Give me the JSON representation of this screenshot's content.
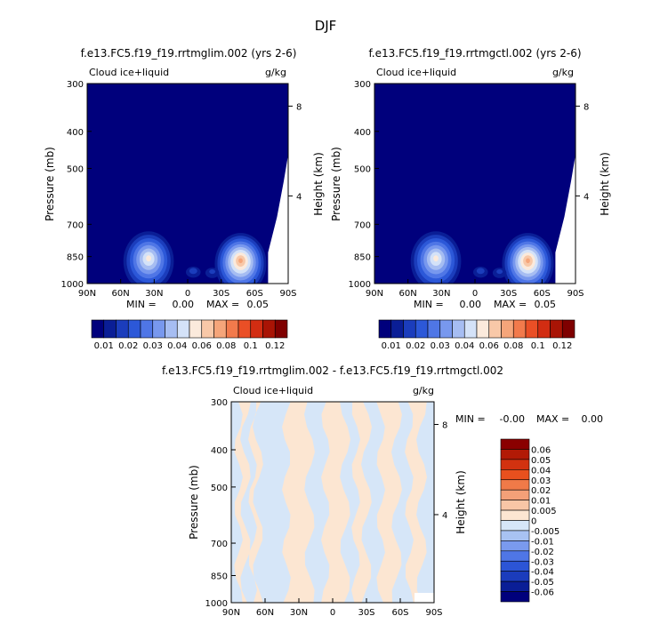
{
  "page_title": "DJF",
  "chart_data": [
    {
      "type": "heatmap",
      "title": "f.e13.FC5.f19_f19.rrtmglim.002 (yrs 2-6)",
      "variable_label": "Cloud ice+liquid",
      "units_label": "g/kg",
      "ylabel": "Pressure (mb)",
      "y2label": "Height (km)",
      "x_ticks": [
        "90N",
        "60N",
        "30N",
        "0",
        "30S",
        "60S",
        "90S"
      ],
      "y_ticks": [
        "300",
        "400",
        "500",
        "700",
        "850",
        "1000"
      ],
      "y_tick_values": [
        300,
        400,
        500,
        700,
        850,
        1000
      ],
      "y2_ticks": [
        "8",
        "4"
      ],
      "x_range": [
        90,
        -90
      ],
      "y_range": [
        300,
        1000
      ],
      "y_scale": "log",
      "min_label": "MIN =",
      "min_value": "0.00",
      "max_label": "MAX =",
      "max_value": "0.05",
      "colorbar_levels": [
        "0.01",
        "0.02",
        "0.03",
        "0.04",
        "0.06",
        "0.08",
        "0.1",
        "0.12"
      ],
      "colorbar_colors": [
        "#00007c",
        "#0a1e96",
        "#1b3dbc",
        "#2c58d8",
        "#4f76e6",
        "#7898ee",
        "#a6bdf2",
        "#d4e2f8",
        "#fbeadc",
        "#f8c8a8",
        "#f5a57a",
        "#f27a4c",
        "#ea4f26",
        "#d22d12",
        "#a91405",
        "#7f0000"
      ],
      "features": [
        {
          "lat": 35,
          "p": 858,
          "peak": 0.04
        },
        {
          "lat": -45,
          "p": 870,
          "peak": 0.05
        },
        {
          "lat": -5,
          "p": 920,
          "peak": 0.012
        },
        {
          "lat": -22,
          "p": 925,
          "peak": 0.01
        }
      ]
    },
    {
      "type": "heatmap",
      "title": "f.e13.FC5.f19_f19.rrtmgctl.002 (yrs 2-6)",
      "variable_label": "Cloud ice+liquid",
      "units_label": "g/kg",
      "ylabel": "Pressure (mb)",
      "y2label": "Height (km)",
      "x_ticks": [
        "90N",
        "60N",
        "30N",
        "0",
        "30S",
        "60S",
        "90S"
      ],
      "y_ticks": [
        "300",
        "400",
        "500",
        "700",
        "850",
        "1000"
      ],
      "y_tick_values": [
        300,
        400,
        500,
        700,
        850,
        1000
      ],
      "y2_ticks": [
        "8",
        "4"
      ],
      "x_range": [
        90,
        -90
      ],
      "y_range": [
        300,
        1000
      ],
      "y_scale": "log",
      "min_label": "MIN =",
      "min_value": "0.00",
      "max_label": "MAX =",
      "max_value": "0.05",
      "colorbar_levels": [
        "0.01",
        "0.02",
        "0.03",
        "0.04",
        "0.06",
        "0.08",
        "0.1",
        "0.12"
      ],
      "colorbar_colors": [
        "#00007c",
        "#0a1e96",
        "#1b3dbc",
        "#2c58d8",
        "#4f76e6",
        "#7898ee",
        "#a6bdf2",
        "#d4e2f8",
        "#fbeadc",
        "#f8c8a8",
        "#f5a57a",
        "#f27a4c",
        "#ea4f26",
        "#d22d12",
        "#a91405",
        "#7f0000"
      ],
      "features": [
        {
          "lat": 35,
          "p": 858,
          "peak": 0.04
        },
        {
          "lat": -45,
          "p": 870,
          "peak": 0.05
        },
        {
          "lat": -5,
          "p": 920,
          "peak": 0.012
        },
        {
          "lat": -22,
          "p": 925,
          "peak": 0.01
        }
      ]
    },
    {
      "type": "heatmap",
      "title": "f.e13.FC5.f19_f19.rrtmglim.002 - f.e13.FC5.f19_f19.rrtmgctl.002",
      "variable_label": "Cloud ice+liquid",
      "units_label": "g/kg",
      "ylabel": "Pressure (mb)",
      "y2label": "Height (km)",
      "x_ticks": [
        "90N",
        "60N",
        "30N",
        "0",
        "30S",
        "60S",
        "90S"
      ],
      "y_ticks": [
        "300",
        "400",
        "500",
        "700",
        "850",
        "1000"
      ],
      "y_tick_values": [
        300,
        400,
        500,
        700,
        850,
        1000
      ],
      "y2_ticks": [
        "8",
        "4"
      ],
      "x_range": [
        90,
        -90
      ],
      "y_range": [
        300,
        1000
      ],
      "y_scale": "log",
      "min_label": "MIN =",
      "min_value": "-0.00",
      "max_label": "MAX =",
      "max_value": "0.00",
      "colorbar_levels": [
        "0.06",
        "0.05",
        "0.04",
        "0.03",
        "0.02",
        "0.01",
        "0.005",
        "0",
        "-0.005",
        "-0.01",
        "-0.02",
        "-0.03",
        "-0.04",
        "-0.05",
        "-0.06"
      ],
      "colorbar_colors": [
        "#8a0000",
        "#b21a06",
        "#d23210",
        "#e8501e",
        "#f07a48",
        "#f4a078",
        "#f8c6a6",
        "#fce6d2",
        "#d6e6f8",
        "#a8c2f2",
        "#7a9aee",
        "#4f76e6",
        "#2c55d6",
        "#1b3cbc",
        "#0a1e96",
        "#00007c"
      ],
      "dominant_colors": [
        "#d6e6f8",
        "#fce6d2"
      ]
    }
  ]
}
